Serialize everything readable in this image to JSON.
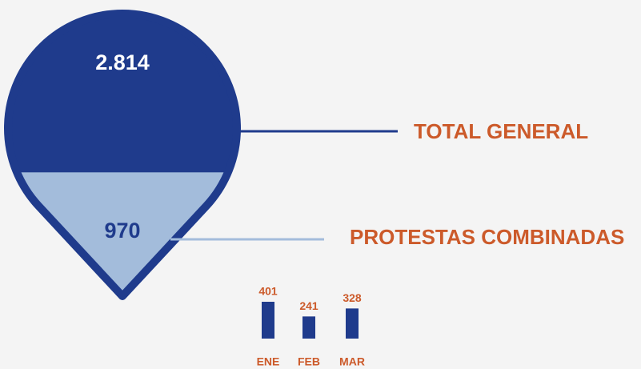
{
  "total": {
    "value": 2814,
    "label": "2.814",
    "caption": "TOTAL GENERAL"
  },
  "combined": {
    "value": 970,
    "label": "970",
    "caption": "PROTESTAS COMBINADAS"
  },
  "colors": {
    "total": "#1f3b8c",
    "combined": "#a3bcdb",
    "caption": "#cc5a2a"
  },
  "chart_data": {
    "type": "bar",
    "categories": [
      "ENE",
      "FEB",
      "MAR"
    ],
    "values": [
      401,
      241,
      328
    ],
    "color": "#1f3b8c",
    "label_color": "#cc5a2a"
  }
}
